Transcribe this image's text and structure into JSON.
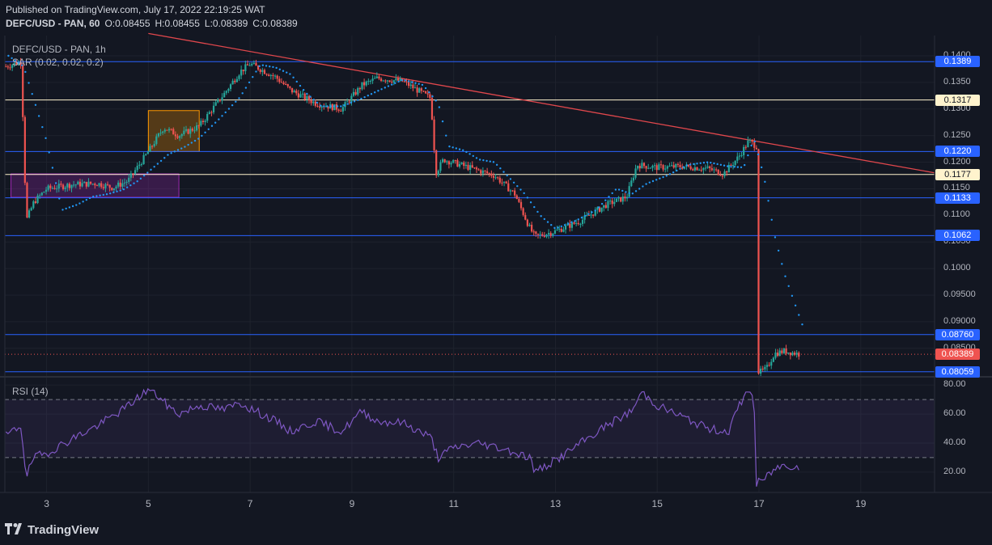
{
  "header": {
    "published": "Published on TradingView.com, July 17, 2022 22:19:25 WAT",
    "symbol": "DEFC/USD - PAN, 60",
    "open": "O:0.08455",
    "high": "H:0.08455",
    "low": "L:0.08389",
    "close": "C:0.08389"
  },
  "legend": {
    "title": "DEFC/USD - PAN, 1h",
    "sar": "SAR (0.02, 0.02, 0.2)",
    "rsi": "RSI (14)"
  },
  "footer": {
    "brand": "TradingView"
  },
  "colors": {
    "up": "#26a69a",
    "down": "#ef5350",
    "sar": "#2196f3",
    "rsi": "#7e57c2",
    "level": "#2962ff",
    "cream_level": "#fff3cd",
    "trendline": "#e0474c"
  },
  "chart_data": [
    {
      "type": "candlestick",
      "title": "DEFC/USD - PAN, 1h",
      "x_ticks": [
        "3",
        "5",
        "7",
        "9",
        "11",
        "13",
        "15",
        "17",
        "19"
      ],
      "y_ticks": [
        "0.1400",
        "0.1350",
        "0.1300",
        "0.1250",
        "0.1200",
        "0.1150",
        "0.1100",
        "0.1050",
        "0.1000",
        "0.09500",
        "0.09000",
        "0.08500"
      ],
      "ylim": [
        0.0798,
        0.1438
      ],
      "xlim": [
        2.18,
        20.45
      ],
      "levels": [
        {
          "label": "0.1389",
          "value": 0.1389,
          "style": "blue"
        },
        {
          "label": "0.1317",
          "value": 0.1317,
          "style": "cream"
        },
        {
          "label": "0.1220",
          "value": 0.122,
          "style": "blue"
        },
        {
          "label": "0.1177",
          "value": 0.1177,
          "style": "cream"
        },
        {
          "label": "0.1133",
          "value": 0.1133,
          "style": "blue"
        },
        {
          "label": "0.1062",
          "value": 0.1062,
          "style": "blue"
        },
        {
          "label": "0.08760",
          "value": 0.0876,
          "style": "blue"
        },
        {
          "label": "0.08059",
          "value": 0.08059,
          "style": "blue"
        }
      ],
      "last_price": {
        "label": "0.08389",
        "value": 0.08389
      },
      "trendline": {
        "from": [
          5.0,
          0.1442
        ],
        "to": [
          20.45,
          0.118
        ]
      },
      "zones": [
        {
          "x": [
            2.3,
            5.6
          ],
          "y": [
            0.1134,
            0.1178
          ],
          "color": "#9c27b0"
        },
        {
          "x": [
            5.0,
            6.0
          ],
          "y": [
            0.122,
            0.1297
          ],
          "color": "#ff9800"
        }
      ],
      "series": [
        {
          "name": "DEFC/USD",
          "kind": "close",
          "x": [
            2.2,
            2.5,
            2.6,
            2.75,
            3.0,
            3.5,
            4.0,
            4.3,
            4.6,
            5.0,
            5.3,
            5.6,
            6.0,
            6.5,
            6.8,
            7.0,
            7.5,
            7.8,
            8.3,
            8.8,
            9.2,
            9.5,
            10.0,
            10.55,
            10.65,
            10.8,
            11.3,
            11.8,
            12.2,
            12.5,
            12.6,
            13.0,
            13.5,
            14.0,
            14.4,
            14.6,
            15.0,
            15.5,
            16.0,
            16.3,
            16.6,
            16.8,
            16.95,
            16.97,
            17.05,
            17.15,
            17.3,
            17.5,
            17.8
          ],
          "y": [
            0.138,
            0.1389,
            0.109,
            0.1125,
            0.115,
            0.1158,
            0.116,
            0.1152,
            0.1165,
            0.122,
            0.1265,
            0.125,
            0.1268,
            0.133,
            0.137,
            0.1385,
            0.136,
            0.1335,
            0.131,
            0.13,
            0.1345,
            0.1358,
            0.1352,
            0.132,
            0.118,
            0.1205,
            0.119,
            0.1175,
            0.114,
            0.1075,
            0.106,
            0.107,
            0.109,
            0.112,
            0.1135,
            0.1195,
            0.119,
            0.1192,
            0.1188,
            0.1178,
            0.121,
            0.124,
            0.123,
            0.0806,
            0.0806,
            0.0812,
            0.084,
            0.0845,
            0.08389
          ]
        },
        {
          "name": "SAR",
          "kind": "sar",
          "x": [
            2.25,
            2.55,
            2.75,
            3.0,
            3.3,
            3.6,
            3.9,
            4.2,
            4.5,
            4.8,
            5.1,
            5.4,
            5.7,
            6.0,
            6.4,
            6.8,
            7.2,
            7.5,
            7.8,
            8.1,
            8.4,
            8.8,
            9.2,
            9.6,
            10.0,
            10.4,
            10.7,
            10.9,
            11.2,
            11.5,
            11.8,
            12.1,
            12.4,
            12.7,
            13.0,
            13.4,
            13.8,
            14.2,
            14.5,
            14.8,
            15.2,
            15.6,
            16.0,
            16.4,
            16.7,
            16.9,
            17.1,
            17.3,
            17.5,
            17.7,
            17.85
          ],
          "y": [
            0.14,
            0.138,
            0.1318,
            0.124,
            0.111,
            0.112,
            0.1135,
            0.114,
            0.1148,
            0.1165,
            0.119,
            0.1215,
            0.1228,
            0.1245,
            0.1282,
            0.1322,
            0.1383,
            0.1378,
            0.1365,
            0.133,
            0.1305,
            0.1305,
            0.132,
            0.1338,
            0.1355,
            0.1345,
            0.131,
            0.123,
            0.1222,
            0.1205,
            0.12,
            0.117,
            0.114,
            0.11,
            0.1075,
            0.109,
            0.111,
            0.115,
            0.114,
            0.116,
            0.1175,
            0.1195,
            0.12,
            0.1192,
            0.119,
            0.1245,
            0.1172,
            0.1065,
            0.099,
            0.0935,
            0.0895
          ]
        },
        {
          "name": "RSI",
          "kind": "rsi",
          "x": [
            2.2,
            2.5,
            2.6,
            2.75,
            3.0,
            3.5,
            4.0,
            4.5,
            5.0,
            5.2,
            5.4,
            5.6,
            6.0,
            6.5,
            6.8,
            7.0,
            7.5,
            7.8,
            8.3,
            8.8,
            9.2,
            9.5,
            10.0,
            10.55,
            10.7,
            11.0,
            11.5,
            12.0,
            12.5,
            12.6,
            13.0,
            13.5,
            14.0,
            14.5,
            14.7,
            15.0,
            15.5,
            16.0,
            16.4,
            16.6,
            16.8,
            16.9,
            16.95,
            17.0,
            17.1,
            17.3,
            17.5,
            17.8
          ],
          "y": [
            45,
            52,
            17,
            30,
            33,
            43,
            52,
            63,
            77,
            72,
            65,
            60,
            66,
            63,
            68,
            64,
            55,
            48,
            55,
            48,
            62,
            55,
            54,
            44,
            30,
            37,
            40,
            36,
            30,
            20,
            28,
            40,
            52,
            62,
            75,
            66,
            58,
            50,
            48,
            65,
            78,
            70,
            12,
            13,
            15,
            22,
            25,
            24
          ]
        }
      ]
    },
    {
      "type": "line",
      "title": "RSI (14)",
      "y_ticks": [
        "80.00",
        "60.00",
        "40.00",
        "20.00"
      ],
      "ylim": [
        6,
        84
      ],
      "bands": [
        70,
        30
      ]
    }
  ]
}
